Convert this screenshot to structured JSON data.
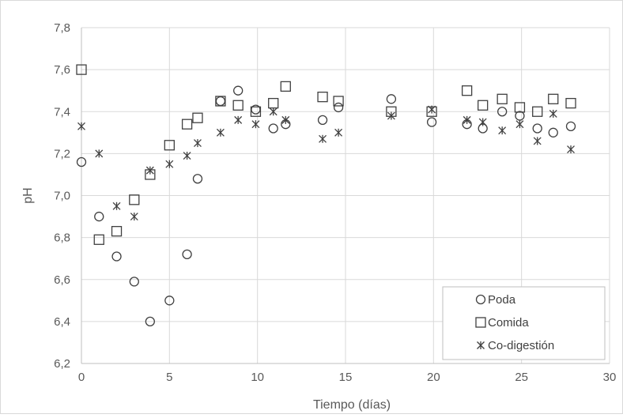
{
  "chart_data": {
    "type": "scatter",
    "xlabel": "Tiempo (días)",
    "ylabel": "pH",
    "xlim": [
      0,
      30
    ],
    "ylim": [
      6.2,
      7.8
    ],
    "x_ticks": [
      0,
      5,
      10,
      15,
      20,
      25,
      30
    ],
    "y_ticks": [
      6.2,
      6.4,
      6.6,
      6.8,
      7.0,
      7.2,
      7.4,
      7.6,
      7.8
    ],
    "y_tick_labels": [
      "6,2",
      "6,4",
      "6,6",
      "6,8",
      "7,0",
      "7,2",
      "7,4",
      "7,6",
      "7,8"
    ],
    "grid": "horizontal and vertical",
    "legend_position": "bottom-right",
    "series": [
      {
        "name": "Poda",
        "marker": "circle",
        "x": [
          0,
          1,
          2,
          3,
          3.9,
          5,
          6,
          6.6,
          7.9,
          8.9,
          9.9,
          10.9,
          11.6,
          13.7,
          14.6,
          17.6,
          19.9,
          21.9,
          22.8,
          23.9,
          24.9,
          25.9,
          26.8,
          27.8
        ],
        "y": [
          7.16,
          6.9,
          6.71,
          6.59,
          6.4,
          6.5,
          6.72,
          7.08,
          7.45,
          7.5,
          7.41,
          7.32,
          7.34,
          7.36,
          7.42,
          7.46,
          7.35,
          7.34,
          7.32,
          7.4,
          7.38,
          7.32,
          7.3,
          7.33
        ]
      },
      {
        "name": "Comida",
        "marker": "square",
        "x": [
          0,
          1,
          2,
          3,
          3.9,
          5,
          6,
          6.6,
          7.9,
          8.9,
          9.9,
          10.9,
          11.6,
          13.7,
          14.6,
          17.6,
          19.9,
          21.9,
          22.8,
          23.9,
          24.9,
          25.9,
          26.8,
          27.8
        ],
        "y": [
          7.6,
          6.79,
          6.83,
          6.98,
          7.1,
          7.24,
          7.34,
          7.37,
          7.45,
          7.43,
          7.4,
          7.44,
          7.52,
          7.47,
          7.45,
          7.4,
          7.4,
          7.5,
          7.43,
          7.46,
          7.42,
          7.4,
          7.46,
          7.44
        ]
      },
      {
        "name": "Co-digestión",
        "marker": "asterisk",
        "x": [
          0,
          1,
          2,
          3,
          3.9,
          5,
          6,
          6.6,
          7.9,
          8.9,
          9.9,
          10.9,
          11.6,
          13.7,
          14.6,
          17.6,
          19.9,
          21.9,
          22.8,
          23.9,
          24.9,
          25.9,
          26.8,
          27.8
        ],
        "y": [
          7.33,
          7.2,
          6.95,
          6.9,
          7.12,
          7.15,
          7.19,
          7.25,
          7.3,
          7.36,
          7.34,
          7.4,
          7.36,
          7.27,
          7.3,
          7.38,
          7.41,
          7.36,
          7.35,
          7.31,
          7.34,
          7.26,
          7.39,
          7.22
        ]
      }
    ]
  }
}
